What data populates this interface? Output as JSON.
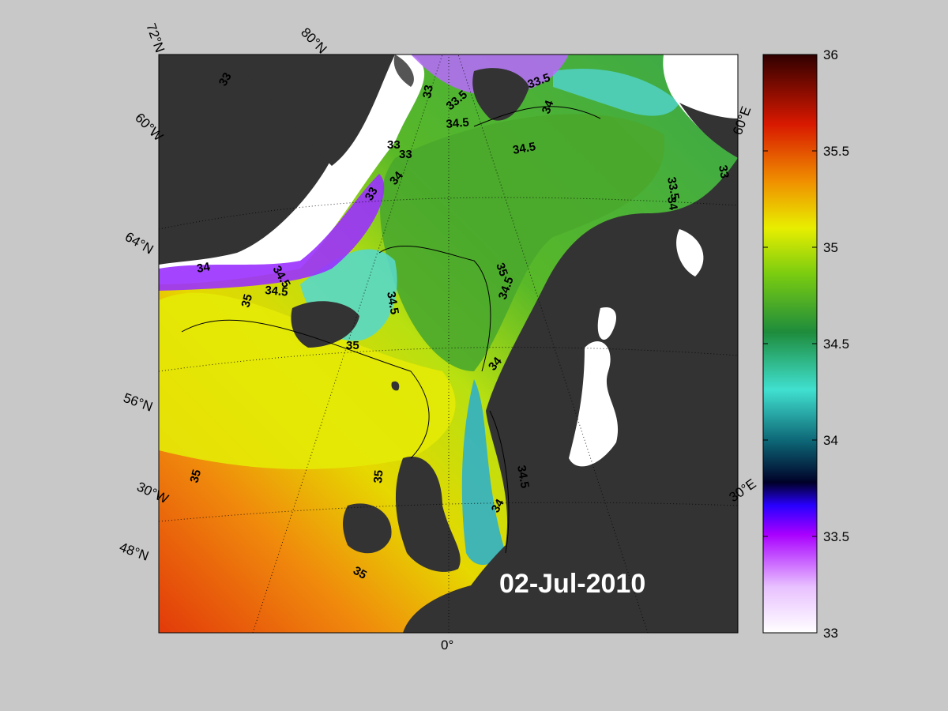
{
  "date_label": "02-Jul-2010",
  "latitude_labels": [
    "72°N",
    "80°N",
    "60°W",
    "64°N",
    "56°N",
    "30°W",
    "48°N"
  ],
  "longitude_labels": {
    "prime": "0°",
    "east60": "60°E",
    "east30": "30°E"
  },
  "colorbar": {
    "min": 33,
    "max": 36,
    "ticks": [
      "33",
      "33.5",
      "34",
      "34.5",
      "35",
      "35.5",
      "36"
    ],
    "colors": [
      "#ffffff",
      "#e6b6ff",
      "#a000ff",
      "#3000ff",
      "#000030",
      "#0c6070",
      "#3ed8c8",
      "#2aa848",
      "#6cc818",
      "#e4ec00",
      "#f08a00",
      "#d41a00",
      "#400000"
    ]
  },
  "contour_labels": [
    "33",
    "33",
    "33",
    "33",
    "33",
    "33",
    "33.5",
    "33.5",
    "33.5",
    "34",
    "34",
    "34",
    "34",
    "34",
    "34",
    "34.5",
    "34.5",
    "34.5",
    "34.5",
    "34.5",
    "34.5",
    "34.5",
    "35",
    "35",
    "35",
    "35",
    "35",
    "35"
  ]
}
